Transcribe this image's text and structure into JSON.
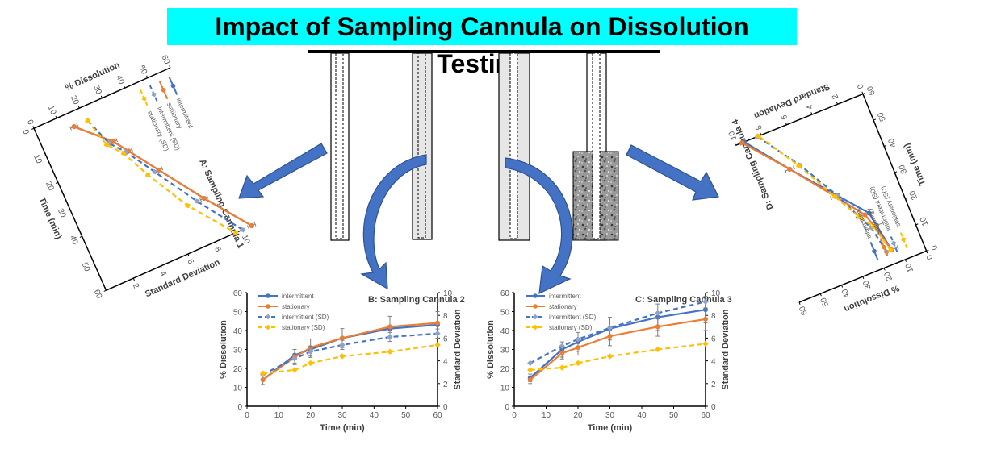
{
  "header": {
    "title": "Impact of Sampling Cannula on Dissolution Testing"
  },
  "colors": {
    "intermittent": "#4472c4",
    "stationary": "#ed7d31",
    "intermittent_sd": "#4472c4",
    "stationary_sd": "#ffc000",
    "arrow": "#4472c4",
    "title_band": "#00ffff"
  },
  "chart_data": [
    {
      "id": "A",
      "type": "line",
      "title": "A: Sampling Cannula 1",
      "xlabel": "Time (min)",
      "ylabel": "% Dissolution",
      "y2label": "Standard Deviation",
      "x": [
        5,
        15,
        20,
        30,
        45,
        60
      ],
      "xlim": [
        0,
        60
      ],
      "ylim": [
        0,
        60
      ],
      "y2lim": [
        0,
        10
      ],
      "xticks": [
        "0",
        "10",
        "20",
        "30",
        "40",
        "50",
        "60"
      ],
      "yticks": [
        "0",
        "10",
        "20",
        "30",
        "40",
        "50",
        "60"
      ],
      "y2ticks": [
        "2",
        "4",
        "6",
        "8",
        "10"
      ],
      "series": [
        {
          "name": "intermittent",
          "axis": "y",
          "values": [
            15,
            27,
            31,
            39,
            51,
            64
          ],
          "errors": [
            0,
            0,
            0,
            0,
            0,
            0
          ]
        },
        {
          "name": "stationary",
          "axis": "y",
          "values": [
            15,
            27,
            31,
            39,
            51,
            64
          ],
          "errors": [
            1.5,
            1.5,
            1.5,
            1.5,
            1.5,
            1.5
          ]
        },
        {
          "name": "intermittent (SD)",
          "axis": "y2",
          "values": [
            3.5,
            4.2,
            5,
            6.2,
            8,
            10
          ]
        },
        {
          "name": "stationary (SD)",
          "axis": "y2",
          "values": [
            3.5,
            4,
            4.8,
            5.7,
            7.3,
            9.5
          ]
        }
      ],
      "legend": "top"
    },
    {
      "id": "B",
      "type": "line",
      "title": "B: Sampling Cannula 2",
      "xlabel": "Time (min)",
      "ylabel": "% Dissolution",
      "y2label": "Standard Deviation",
      "x": [
        5,
        15,
        20,
        30,
        45,
        60
      ],
      "xlim": [
        0,
        60
      ],
      "ylim": [
        0,
        60
      ],
      "y2lim": [
        0,
        10
      ],
      "xticks": [
        "0",
        "10",
        "20",
        "30",
        "40",
        "50",
        "60"
      ],
      "yticks": [
        "0",
        "10",
        "20",
        "30",
        "40",
        "50",
        "60"
      ],
      "y2ticks": [
        "0",
        "2",
        "4",
        "6",
        "8",
        "10"
      ],
      "series": [
        {
          "name": "intermittent",
          "axis": "y",
          "values": [
            14,
            27,
            30,
            36,
            41,
            43
          ],
          "errors": [
            0,
            0,
            0,
            0,
            0,
            0
          ]
        },
        {
          "name": "stationary",
          "axis": "y",
          "values": [
            14,
            26,
            31,
            36,
            42,
            44
          ],
          "errors": [
            2.5,
            4,
            4.5,
            5,
            5.5,
            6
          ]
        },
        {
          "name": "intermittent (SD)",
          "axis": "y2",
          "values": [
            2.8,
            4.2,
            4.8,
            5.4,
            6.1,
            6.4
          ],
          "errors": [
            0,
            0.4,
            0.5,
            0.4,
            0.4,
            0.4
          ]
        },
        {
          "name": "stationary (SD)",
          "axis": "y2",
          "values": [
            2.9,
            3.2,
            3.8,
            4.4,
            4.8,
            5.4
          ]
        }
      ],
      "legend": "top-left"
    },
    {
      "id": "C",
      "type": "line",
      "title": "C: Sampling Cannula 3",
      "xlabel": "Time (min)",
      "ylabel": "% Dissolution",
      "y2label": "Standard Deviation",
      "x": [
        5,
        15,
        20,
        30,
        45,
        60
      ],
      "xlim": [
        0,
        60
      ],
      "ylim": [
        0,
        60
      ],
      "y2lim": [
        0,
        10
      ],
      "xticks": [
        "0",
        "10",
        "20",
        "30",
        "40",
        "50",
        "60"
      ],
      "yticks": [
        "0",
        "10",
        "20",
        "30",
        "40",
        "50",
        "60"
      ],
      "y2ticks": [
        "0",
        "2",
        "4",
        "6",
        "8",
        "10"
      ],
      "series": [
        {
          "name": "intermittent",
          "axis": "y",
          "values": [
            15,
            30,
            34,
            41,
            47,
            51
          ],
          "errors": [
            2,
            4,
            5,
            6,
            7,
            7
          ]
        },
        {
          "name": "stationary",
          "axis": "y",
          "values": [
            14,
            28,
            31,
            37,
            42,
            46
          ],
          "errors": [
            2,
            3,
            4,
            5,
            5,
            6
          ]
        },
        {
          "name": "intermittent (SD)",
          "axis": "y2",
          "values": [
            3.8,
            5.3,
            5.9,
            6.9,
            8.2,
            9.2
          ]
        },
        {
          "name": "stationary (SD)",
          "axis": "y2",
          "values": [
            3.2,
            3.4,
            3.8,
            4.4,
            5,
            5.5
          ]
        }
      ],
      "legend": "top-left"
    },
    {
      "id": "D",
      "type": "line",
      "title": "D: Sampling Cannula 4",
      "xlabel": "Time (min)",
      "ylabel": "% Dissolution",
      "y2label": "Standard Deviation",
      "x": [
        5,
        15,
        20,
        30,
        45,
        60
      ],
      "xlim": [
        0,
        60
      ],
      "ylim": [
        0,
        60
      ],
      "y2lim": [
        0,
        10
      ],
      "xticks": [
        "0",
        "10",
        "20",
        "30",
        "40",
        "50",
        "60"
      ],
      "yticks": [
        "0",
        "10",
        "20",
        "30",
        "40",
        "50",
        "60"
      ],
      "y2ticks": [
        "0",
        "2",
        "4",
        "6",
        "8",
        "10"
      ],
      "series": [
        {
          "name": "intermittent",
          "axis": "y",
          "values": [
            14,
            16,
            17,
            27,
            42,
            56
          ],
          "errors": [
            0,
            0,
            0,
            0,
            0,
            0
          ]
        },
        {
          "name": "stationary",
          "axis": "y",
          "values": [
            14,
            17,
            19,
            28,
            42,
            57
          ],
          "errors": [
            3,
            4,
            4,
            2,
            2,
            1
          ]
        },
        {
          "name": "intermittent (SD)",
          "axis": "y2",
          "values": [
            2.7,
            3.1,
            3.6,
            4.5,
            6.2,
            8.3
          ]
        },
        {
          "name": "stationary (SD)",
          "axis": "y2",
          "values": [
            2.4,
            2.9,
            3.6,
            4.7,
            6.3,
            8.2
          ]
        }
      ],
      "legend": "bottom-left"
    }
  ]
}
